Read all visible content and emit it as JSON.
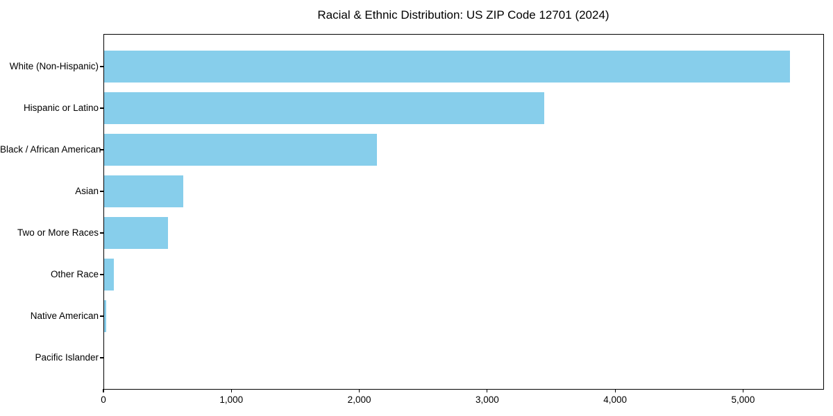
{
  "chart_data": {
    "type": "bar",
    "orientation": "horizontal",
    "title": "Racial & Ethnic Distribution: US ZIP Code 12701 (2024)",
    "xlabel": "",
    "ylabel": "",
    "categories": [
      "White (Non-Hispanic)",
      "Hispanic or Latino",
      "Black / African American",
      "Asian",
      "Two or More Races",
      "Other Race",
      "Native American",
      "Pacific Islander"
    ],
    "values": [
      5360,
      3440,
      2130,
      620,
      500,
      75,
      18,
      0
    ],
    "xlim": [
      0,
      5627
    ],
    "x_ticks": [
      0,
      1000,
      2000,
      3000,
      4000,
      5000
    ],
    "x_tick_labels": [
      "0",
      "1,000",
      "2,000",
      "3,000",
      "4,000",
      "5,000"
    ],
    "bar_color": "#87CEEB",
    "axis_color": "#000000",
    "background_color": "#ffffff",
    "grid": false,
    "legend": null
  }
}
